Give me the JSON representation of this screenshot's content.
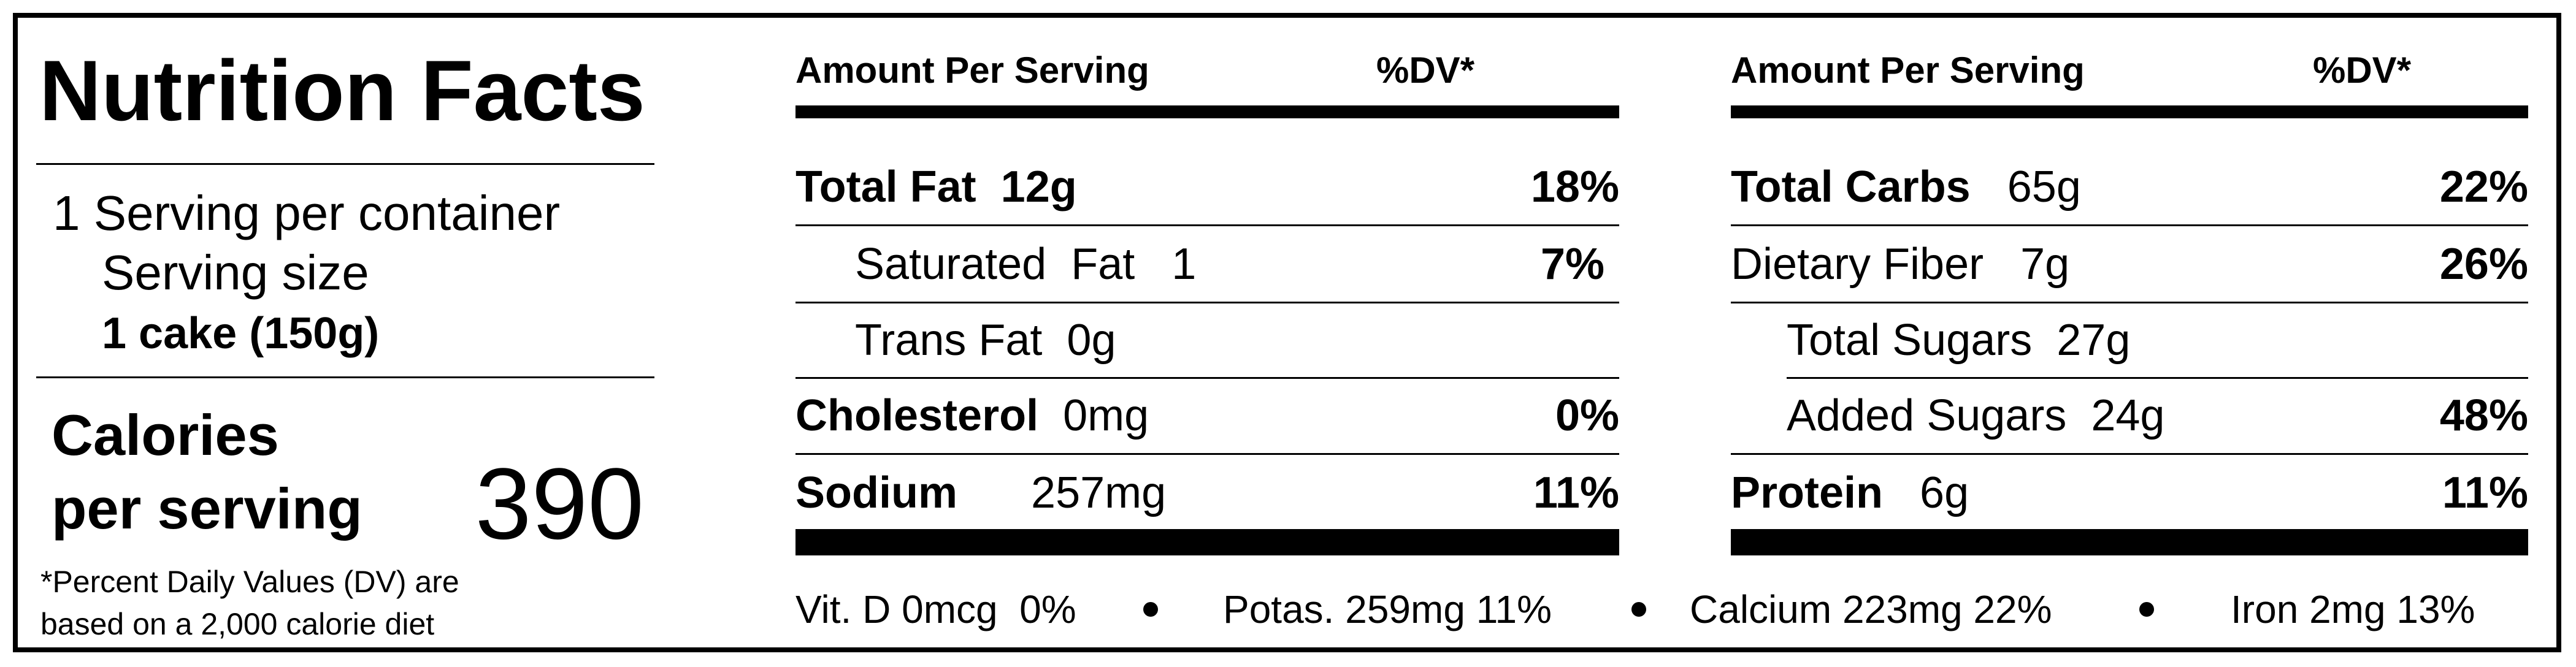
{
  "title": "Nutrition Facts",
  "servings": "1 Serving per container",
  "serving_size_label": "Serving size",
  "serving_size": "1 cake (150g)",
  "calories_label": [
    "Calories",
    "per serving"
  ],
  "calories": 390,
  "footnote": [
    "*Percent Daily Values (DV) are",
    "based on a 2,000 calorie diet"
  ],
  "columns": [
    {
      "header_amount": "Amount Per Serving",
      "header_dv": "%DV*",
      "rows": [
        {
          "name": "Total Fat",
          "amount": "12g",
          "dv": "18%"
        },
        {
          "name": "Saturated  Fat",
          "amount": "1",
          "dv": "7%"
        },
        {
          "name": "Trans Fat",
          "amount": "0g"
        },
        {
          "name": "Cholesterol",
          "amount": "0mg",
          "dv": "0%"
        },
        {
          "name": "Sodium",
          "amount": "257mg",
          "dv": "11%"
        }
      ]
    },
    {
      "header_amount": "Amount Per Serving",
      "header_dv": "%DV*",
      "rows": [
        {
          "name": "Total Carbs",
          "amount": "65g",
          "dv": "22%"
        },
        {
          "name": "Dietary Fiber",
          "amount": "7g",
          "dv": "26%"
        },
        {
          "name": "Total Sugars",
          "amount": "27g"
        },
        {
          "name": "Added Sugars",
          "amount": "24g",
          "dv": "48%"
        },
        {
          "name": "Protein",
          "amount": "6g",
          "dv": "11%"
        }
      ]
    }
  ],
  "minerals": [
    "Vit. D 0mcg  0%",
    "Potas. 259mg 11%",
    "Calcium 223mg 22%",
    "Iron 2mg 13%"
  ]
}
